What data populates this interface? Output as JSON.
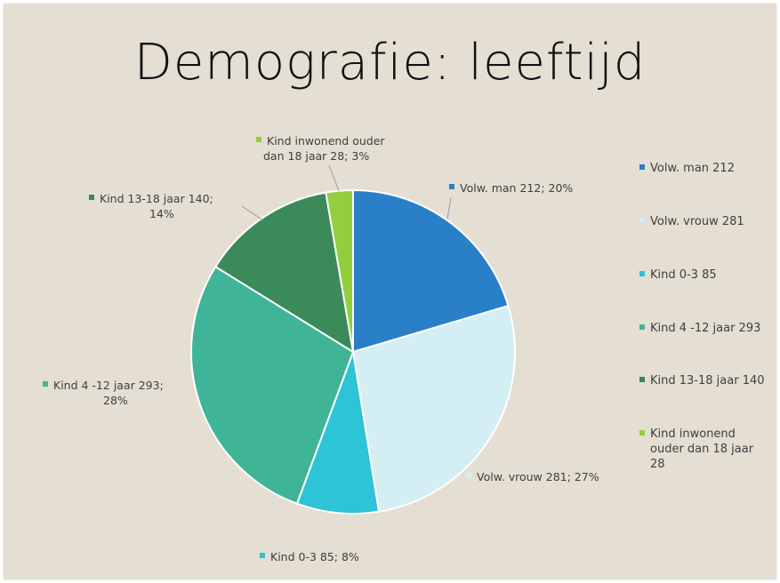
{
  "chart_data": {
    "type": "pie",
    "title": "Demografie: leeftijd",
    "slices": [
      {
        "name": "Volw. man",
        "value": 212,
        "percent": "20%",
        "color": "#2a7fc9",
        "data_label_lines": [
          "Volw. man 212; 20%"
        ],
        "legend_lines": [
          "Volw. man 212"
        ]
      },
      {
        "name": "Volw. vrouw",
        "value": 281,
        "percent": "27%",
        "color": "#d3eff4",
        "data_label_lines": [
          "Volw. vrouw 281; 27%"
        ],
        "legend_lines": [
          "Volw. vrouw 281"
        ]
      },
      {
        "name": "Kind 0-3",
        "value": 85,
        "percent": "8%",
        "color": "#2cc4d6",
        "data_label_lines": [
          "Kind 0-3 85; 8%"
        ],
        "legend_lines": [
          "Kind 0-3 85"
        ]
      },
      {
        "name": "Kind 4 -12 jaar",
        "value": 293,
        "percent": "28%",
        "color": "#40b496",
        "data_label_lines": [
          "Kind 4 -12 jaar 293;",
          "28%"
        ],
        "legend_lines": [
          "Kind 4 -12 jaar 293"
        ]
      },
      {
        "name": "Kind 13-18 jaar",
        "value": 140,
        "percent": "14%",
        "color": "#3b8a5a",
        "data_label_lines": [
          "Kind 13-18 jaar 140;",
          "14%"
        ],
        "legend_lines": [
          "Kind 13-18 jaar 140"
        ]
      },
      {
        "name": "Kind inwonend ouder dan 18 jaar",
        "value": 28,
        "percent": "3%",
        "color": "#93cf3c",
        "data_label_lines": [
          "Kind inwonend ouder",
          "dan 18 jaar 28; 3%"
        ],
        "legend_lines": [
          "Kind inwonend",
          "ouder dan 18 jaar",
          "28"
        ]
      }
    ],
    "legend_position": "right"
  }
}
